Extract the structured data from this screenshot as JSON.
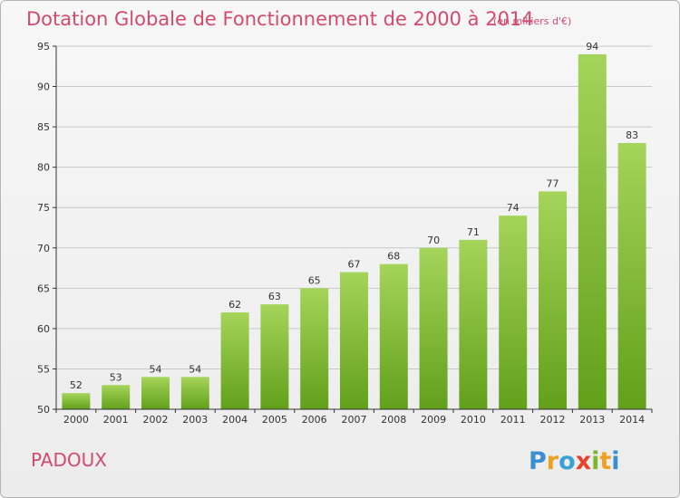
{
  "header": {
    "title": "Dotation Globale de Fonctionnement de 2000 à 2014",
    "subtitle": "(en milliers d'€)"
  },
  "footer": {
    "commune": "PADOUX",
    "logo_text": "Proxiti"
  },
  "colors": {
    "title": "#d44a6d",
    "bar_light": "#a5d45a",
    "bar_dark": "#62a01a",
    "grid": "#c8c8c8",
    "axis": "#333333"
  },
  "chart_data": {
    "type": "bar",
    "title": "Dotation Globale de Fonctionnement de 2000 à 2014",
    "subtitle": "(en milliers d'€)",
    "xlabel": "",
    "ylabel": "",
    "categories": [
      "2000",
      "2001",
      "2002",
      "2003",
      "2004",
      "2005",
      "2006",
      "2007",
      "2008",
      "2009",
      "2010",
      "2011",
      "2012",
      "2013",
      "2014"
    ],
    "values": [
      52,
      53,
      54,
      54,
      62,
      63,
      65,
      67,
      68,
      70,
      71,
      74,
      77,
      94,
      83
    ],
    "ylim": [
      50,
      95
    ],
    "yticks": [
      50,
      55,
      60,
      65,
      70,
      75,
      80,
      85,
      90,
      95
    ],
    "grid": true,
    "legend": "none",
    "data_labels": true
  }
}
